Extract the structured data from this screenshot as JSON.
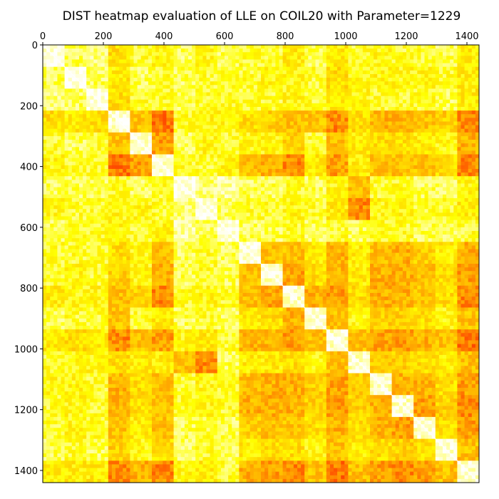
{
  "chart_data": {
    "type": "heatmap",
    "title": "DIST heatmap evaluation of LLE on COIL20 with Parameter=1229",
    "xlabel": "",
    "ylabel": "",
    "n_points": 1440,
    "xlim": [
      0,
      1440
    ],
    "ylim": [
      1440,
      0
    ],
    "x_ticks": [
      0,
      200,
      400,
      600,
      800,
      1000,
      1200,
      1400
    ],
    "y_ticks": [
      0,
      200,
      400,
      600,
      800,
      1000,
      1200,
      1400
    ],
    "x_axis_position": "top",
    "colormap": [
      "#ffffff",
      "#ffffa0",
      "#ffff00",
      "#ffd200",
      "#ffa000",
      "#ff5000",
      "#e00000"
    ],
    "block_boundaries": [
      0,
      72,
      144,
      216,
      288,
      360,
      432,
      504,
      576,
      648,
      720,
      792,
      864,
      936,
      1008,
      1080,
      1152,
      1224,
      1296,
      1368,
      1440
    ],
    "class_matrix": [
      [
        0.05,
        0.25,
        0.2,
        0.45,
        0.3,
        0.35,
        0.25,
        0.35,
        0.25,
        0.3,
        0.3,
        0.4,
        0.25,
        0.4,
        0.3,
        0.35,
        0.3,
        0.3,
        0.25,
        0.4
      ],
      [
        0.25,
        0.05,
        0.25,
        0.4,
        0.25,
        0.3,
        0.25,
        0.3,
        0.3,
        0.3,
        0.35,
        0.35,
        0.3,
        0.45,
        0.35,
        0.35,
        0.35,
        0.35,
        0.3,
        0.4
      ],
      [
        0.2,
        0.25,
        0.05,
        0.45,
        0.3,
        0.3,
        0.25,
        0.3,
        0.3,
        0.3,
        0.3,
        0.35,
        0.3,
        0.4,
        0.35,
        0.3,
        0.3,
        0.3,
        0.25,
        0.4
      ],
      [
        0.45,
        0.4,
        0.45,
        0.08,
        0.55,
        0.75,
        0.3,
        0.35,
        0.35,
        0.45,
        0.5,
        0.55,
        0.55,
        0.7,
        0.45,
        0.6,
        0.6,
        0.55,
        0.5,
        0.7
      ],
      [
        0.3,
        0.25,
        0.3,
        0.55,
        0.08,
        0.65,
        0.25,
        0.35,
        0.3,
        0.35,
        0.35,
        0.5,
        0.3,
        0.55,
        0.4,
        0.45,
        0.45,
        0.4,
        0.35,
        0.6
      ],
      [
        0.35,
        0.3,
        0.3,
        0.75,
        0.65,
        0.08,
        0.3,
        0.3,
        0.35,
        0.55,
        0.6,
        0.7,
        0.4,
        0.65,
        0.4,
        0.55,
        0.55,
        0.55,
        0.45,
        0.7
      ],
      [
        0.25,
        0.25,
        0.25,
        0.3,
        0.25,
        0.3,
        0.05,
        0.2,
        0.15,
        0.25,
        0.25,
        0.3,
        0.25,
        0.35,
        0.55,
        0.3,
        0.3,
        0.25,
        0.25,
        0.35
      ],
      [
        0.35,
        0.3,
        0.3,
        0.35,
        0.35,
        0.3,
        0.2,
        0.05,
        0.25,
        0.3,
        0.3,
        0.35,
        0.3,
        0.4,
        0.7,
        0.35,
        0.35,
        0.3,
        0.3,
        0.4
      ],
      [
        0.25,
        0.3,
        0.3,
        0.35,
        0.3,
        0.35,
        0.15,
        0.25,
        0.05,
        0.25,
        0.25,
        0.3,
        0.25,
        0.3,
        0.25,
        0.3,
        0.3,
        0.25,
        0.25,
        0.3
      ],
      [
        0.3,
        0.3,
        0.3,
        0.45,
        0.35,
        0.55,
        0.25,
        0.3,
        0.25,
        0.08,
        0.55,
        0.55,
        0.4,
        0.6,
        0.4,
        0.55,
        0.6,
        0.5,
        0.4,
        0.6
      ],
      [
        0.3,
        0.35,
        0.3,
        0.5,
        0.35,
        0.6,
        0.25,
        0.3,
        0.25,
        0.55,
        0.1,
        0.65,
        0.45,
        0.6,
        0.4,
        0.6,
        0.6,
        0.55,
        0.45,
        0.65
      ],
      [
        0.4,
        0.35,
        0.35,
        0.55,
        0.5,
        0.7,
        0.3,
        0.35,
        0.3,
        0.55,
        0.65,
        0.1,
        0.6,
        0.65,
        0.45,
        0.6,
        0.6,
        0.55,
        0.45,
        0.7
      ],
      [
        0.25,
        0.3,
        0.3,
        0.55,
        0.3,
        0.4,
        0.25,
        0.3,
        0.25,
        0.4,
        0.45,
        0.6,
        0.08,
        0.55,
        0.35,
        0.5,
        0.5,
        0.45,
        0.35,
        0.55
      ],
      [
        0.4,
        0.45,
        0.4,
        0.7,
        0.55,
        0.65,
        0.35,
        0.4,
        0.3,
        0.6,
        0.6,
        0.65,
        0.55,
        0.1,
        0.55,
        0.65,
        0.65,
        0.6,
        0.55,
        0.75
      ],
      [
        0.3,
        0.35,
        0.35,
        0.45,
        0.4,
        0.4,
        0.55,
        0.7,
        0.25,
        0.4,
        0.4,
        0.45,
        0.35,
        0.55,
        0.1,
        0.5,
        0.5,
        0.45,
        0.4,
        0.55
      ],
      [
        0.35,
        0.35,
        0.3,
        0.6,
        0.45,
        0.55,
        0.3,
        0.35,
        0.3,
        0.55,
        0.6,
        0.6,
        0.5,
        0.65,
        0.5,
        0.1,
        0.6,
        0.6,
        0.45,
        0.65
      ],
      [
        0.3,
        0.35,
        0.3,
        0.6,
        0.45,
        0.55,
        0.3,
        0.35,
        0.3,
        0.6,
        0.6,
        0.6,
        0.5,
        0.65,
        0.5,
        0.6,
        0.1,
        0.65,
        0.5,
        0.7
      ],
      [
        0.3,
        0.35,
        0.3,
        0.55,
        0.4,
        0.55,
        0.25,
        0.3,
        0.25,
        0.5,
        0.55,
        0.55,
        0.45,
        0.6,
        0.45,
        0.6,
        0.65,
        0.1,
        0.45,
        0.65
      ],
      [
        0.25,
        0.3,
        0.25,
        0.5,
        0.35,
        0.45,
        0.25,
        0.3,
        0.25,
        0.4,
        0.45,
        0.45,
        0.35,
        0.55,
        0.4,
        0.45,
        0.5,
        0.45,
        0.08,
        0.55
      ],
      [
        0.4,
        0.4,
        0.4,
        0.7,
        0.6,
        0.7,
        0.35,
        0.4,
        0.3,
        0.6,
        0.65,
        0.7,
        0.55,
        0.75,
        0.55,
        0.65,
        0.7,
        0.65,
        0.55,
        0.1
      ]
    ]
  }
}
